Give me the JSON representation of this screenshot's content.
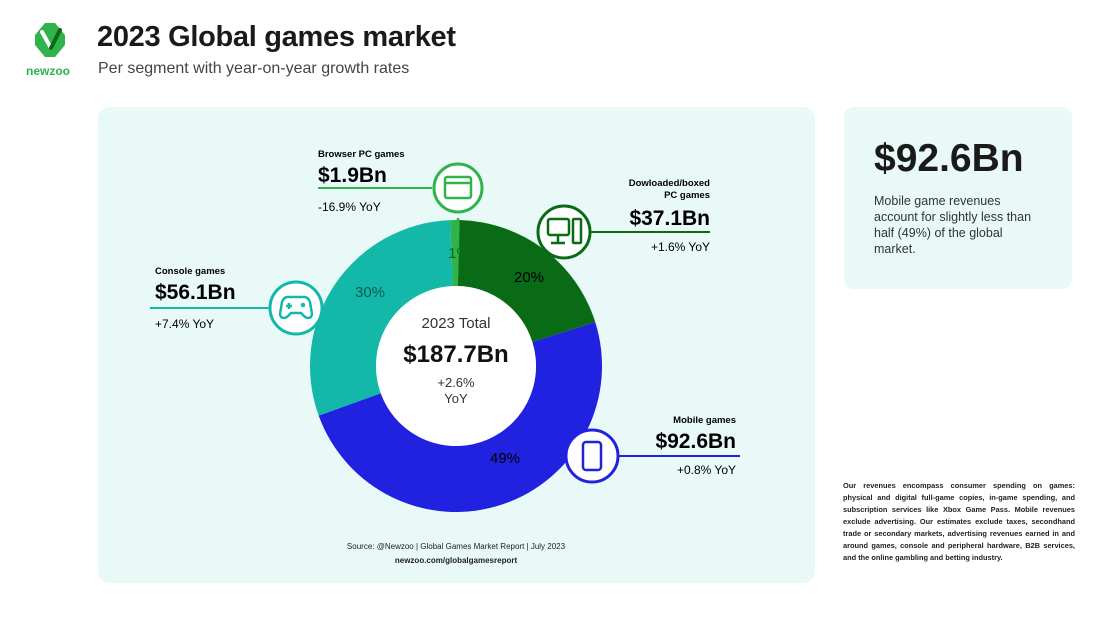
{
  "brand": {
    "name": "newzoo",
    "color": "#2fb34a"
  },
  "header": {
    "title": "2023 Global games market",
    "subtitle": "Per segment with year-on-year growth rates"
  },
  "highlight": {
    "value": "$92.6Bn",
    "text": "Mobile game revenues account for slightly less than half (49%) of the global market."
  },
  "chart_data": {
    "type": "pie",
    "variant": "donut",
    "center": {
      "label": "2023 Total",
      "value": "$187.7Bn",
      "growth": "+2.6%",
      "growth_unit": "YoY"
    },
    "slices": [
      {
        "key": "browser",
        "name": "Browser PC games",
        "value_label": "$1.9Bn",
        "value_bn": 1.9,
        "share_label": "1%",
        "yoy": "-16.9% YoY",
        "color": "#2fb34a",
        "icon": "browser-window-icon"
      },
      {
        "key": "downloaded",
        "name": "Dowloaded/boxed PC games",
        "name_lines": [
          "Dowloaded/boxed",
          "PC games"
        ],
        "value_label": "$37.1Bn",
        "value_bn": 37.1,
        "share_label": "20%",
        "yoy": "+1.6% YoY",
        "color": "#0a6b16",
        "icon": "desktop-computer-icon"
      },
      {
        "key": "mobile",
        "name": "Mobile games",
        "value_label": "$92.6Bn",
        "value_bn": 92.6,
        "share_label": "49%",
        "yoy": "+0.8% YoY",
        "color": "#2121e0",
        "icon": "smartphone-icon"
      },
      {
        "key": "console",
        "name": "Console games",
        "value_label": "$56.1Bn",
        "value_bn": 56.1,
        "share_label": "30%",
        "yoy": "+7.4% YoY",
        "color": "#14b8a8",
        "icon": "gamepad-icon"
      }
    ]
  },
  "source": {
    "line1": "Source: @Newzoo | Global Games Market Report | July 2023",
    "line2": "newzoo.com/globalgamesreport"
  },
  "footnote": "Our revenues encompass consumer spending on games: physical and digital full-game copies, in-game spending, and subscription services like Xbox Game Pass. Mobile revenues exclude advertising. Our estimates exclude taxes, secondhand trade or secondary markets, advertising revenues earned in and around games, console and peripheral hardware, B2B services, and the online gambling and betting industry."
}
